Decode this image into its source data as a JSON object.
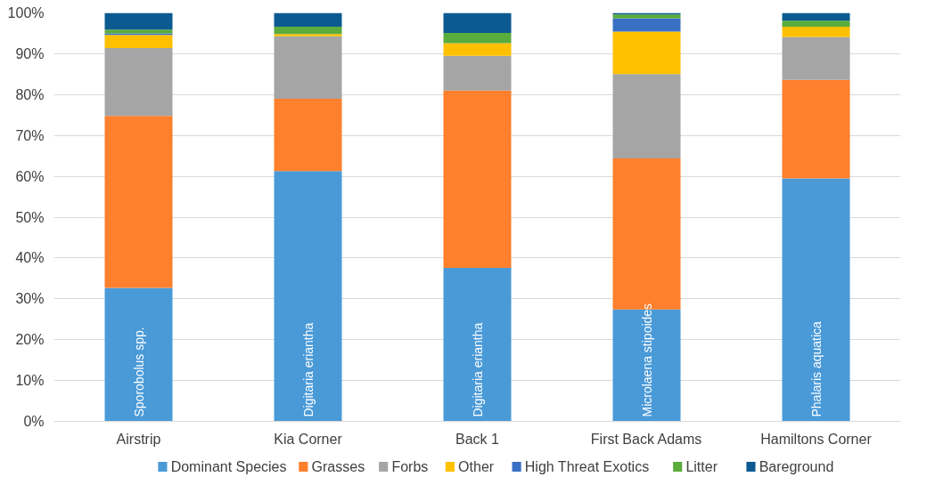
{
  "chart_data": {
    "type": "bar",
    "stacked": true,
    "categories": [
      "Airstrip",
      "Kia Corner",
      "Back 1",
      "First Back Adams",
      "Hamiltons Corner"
    ],
    "series": [
      {
        "name": "Dominant Species",
        "color": "#4a9ad8",
        "values": [
          32.7,
          61.3,
          37.6,
          27.4,
          59.5
        ]
      },
      {
        "name": "Grasses",
        "color": "#fe7f2c",
        "values": [
          42.1,
          17.7,
          43.4,
          37.0,
          24.1
        ]
      },
      {
        "name": "Forbs",
        "color": "#a5a5a5",
        "values": [
          16.6,
          15.3,
          8.5,
          20.6,
          10.5
        ]
      },
      {
        "name": "Other",
        "color": "#ffc000",
        "values": [
          3.2,
          0.5,
          3.1,
          10.4,
          2.5
        ]
      },
      {
        "name": "High Threat Exotics",
        "color": "#3a70c4",
        "values": [
          0.4,
          0,
          0,
          3.3,
          0
        ]
      },
      {
        "name": "Litter",
        "color": "#5aac3c",
        "values": [
          0.9,
          1.8,
          2.5,
          0.9,
          1.5
        ]
      },
      {
        "name": "Bareground",
        "color": "#0b5a91",
        "values": [
          4.1,
          3.4,
          4.9,
          0.4,
          1.9
        ]
      }
    ],
    "ylim": [
      0,
      100
    ],
    "yticks": [
      {
        "value": 0,
        "label": "0%"
      },
      {
        "value": 10,
        "label": "10%"
      },
      {
        "value": 20,
        "label": "20%"
      },
      {
        "value": 30,
        "label": "30%"
      },
      {
        "value": 40,
        "label": "40%"
      },
      {
        "value": 50,
        "label": "50%"
      },
      {
        "value": 60,
        "label": "60%"
      },
      {
        "value": 70,
        "label": "70%"
      },
      {
        "value": 80,
        "label": "80%"
      },
      {
        "value": 90,
        "label": "90%"
      },
      {
        "value": 100,
        "label": "100%"
      }
    ],
    "annotations": [
      "Sporobolus spp.",
      "Digitaria eriantha",
      "Digitaria eriantha",
      "Microlaena stipoides",
      "Phalaris aquatica"
    ],
    "grid": "y",
    "legend": "bottom"
  }
}
